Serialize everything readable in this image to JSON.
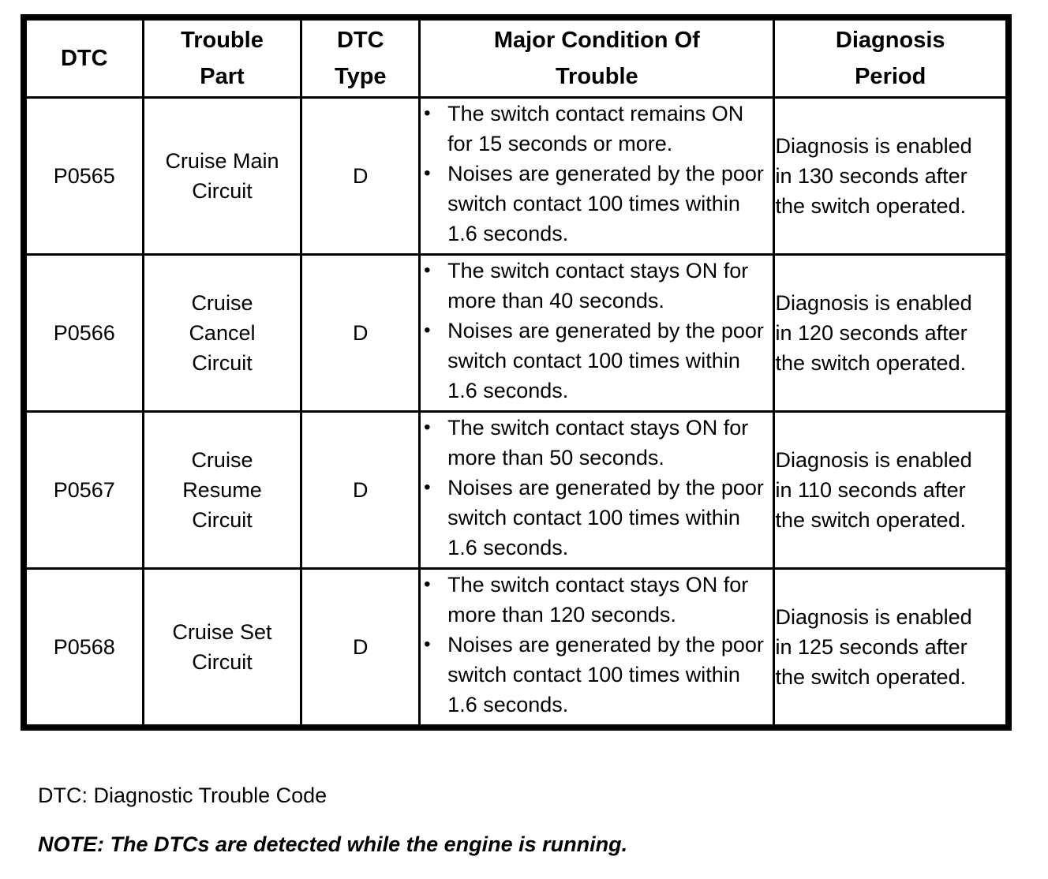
{
  "table": {
    "columns": [
      "DTC",
      "Trouble\nPart",
      "DTC\nType",
      "Major Condition Of\nTrouble",
      "Diagnosis\nPeriod"
    ],
    "bullet": "•",
    "rows": [
      {
        "dtc": "P0565",
        "trouble_part": "Cruise Main\nCircuit",
        "dtc_type": "D",
        "conditions": [
          "The switch contact remains ON for 15 seconds or more.",
          "Noises are generated by the poor switch contact 100 times within 1.6 seconds."
        ],
        "diagnosis_period": "Diagnosis is enabled\nin 130 seconds after\nthe switch operated."
      },
      {
        "dtc": "P0566",
        "trouble_part": "Cruise\nCancel\nCircuit",
        "dtc_type": "D",
        "conditions": [
          "The switch contact stays ON for more than 40 seconds.",
          "Noises are generated by the poor switch contact 100 times within 1.6 seconds."
        ],
        "diagnosis_period": "Diagnosis is enabled\nin 120 seconds after\nthe switch operated."
      },
      {
        "dtc": "P0567",
        "trouble_part": "Cruise\nResume\nCircuit",
        "dtc_type": "D",
        "conditions": [
          "The switch contact stays ON for more than 50 seconds.",
          "Noises are generated by the poor switch contact 100 times within 1.6 seconds."
        ],
        "diagnosis_period": "Diagnosis is enabled\nin 110 seconds after\nthe switch operated."
      },
      {
        "dtc": "P0568",
        "trouble_part": "Cruise Set\nCircuit",
        "dtc_type": "D",
        "conditions": [
          "The switch contact stays ON for more than 120 seconds.",
          "Noises are generated by the poor switch contact 100 times within 1.6 seconds."
        ],
        "diagnosis_period": "Diagnosis is enabled\nin 125 seconds after\nthe switch operated."
      }
    ]
  },
  "footnotes": {
    "dtc_definition": "DTC: Diagnostic Trouble Code",
    "note": "NOTE: The DTCs are detected while the engine is running."
  }
}
